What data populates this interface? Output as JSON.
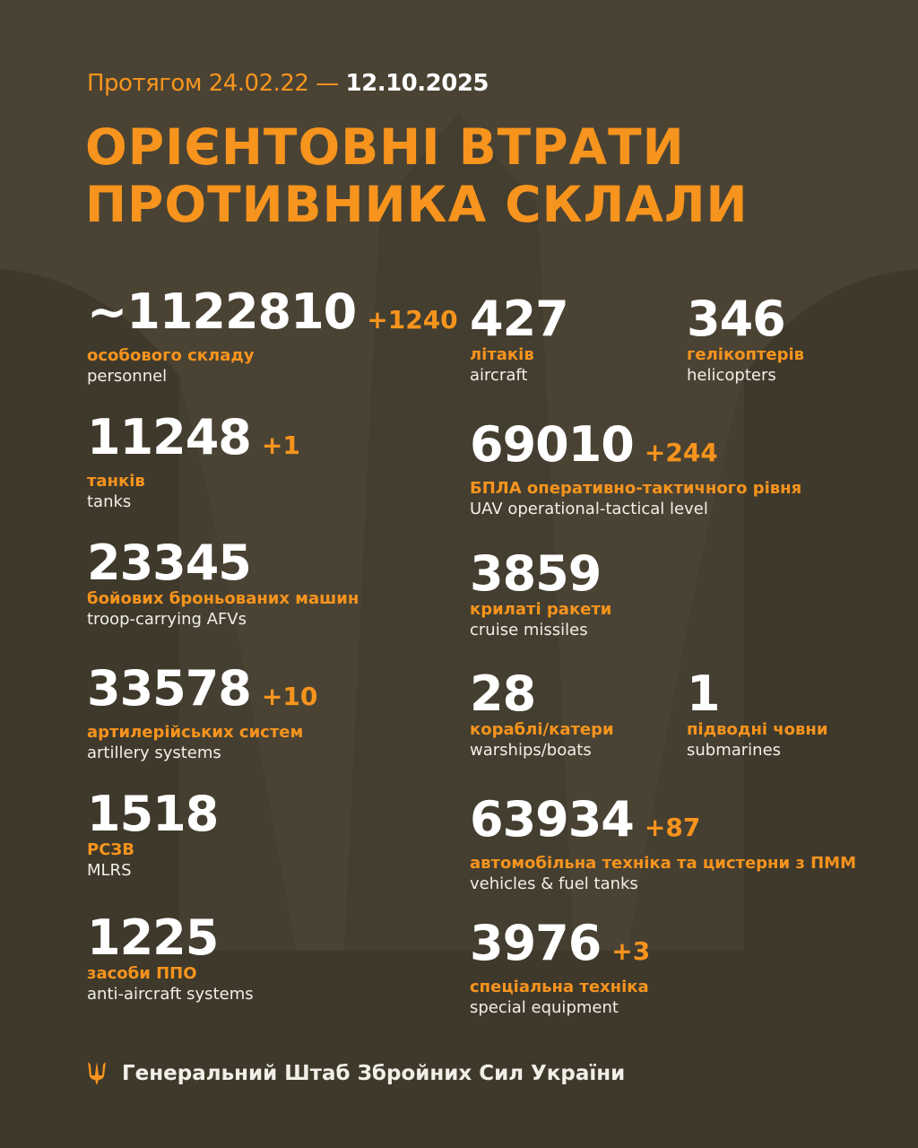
{
  "header": {
    "period_prefix": "Протягом 24.02.22 —",
    "period_end": "12.10.2025",
    "title_line1": "ОРІЄНТОВНІ ВТРАТИ",
    "title_line2": "ПРОТИВНИКА СКЛАЛИ"
  },
  "colors": {
    "accent": "#f7941d",
    "background": "#4a4334",
    "text": "#ffffff"
  },
  "stats": [
    {
      "value": "~1122810",
      "delta": "+1240",
      "label_ua": "особового складу",
      "label_en": "personnel"
    },
    {
      "value": "11248",
      "delta": "+1",
      "label_ua": "танків",
      "label_en": "tanks"
    },
    {
      "value": "23345",
      "delta": "",
      "label_ua": "бойових броньованих машин",
      "label_en": "troop-carrying AFVs"
    },
    {
      "value": "33578",
      "delta": "+10",
      "label_ua": "артилерійських систем",
      "label_en": "artillery systems"
    },
    {
      "value": "1518",
      "delta": "",
      "label_ua": "РСЗВ",
      "label_en": "MLRS"
    },
    {
      "value": "1225",
      "delta": "",
      "label_ua": "засоби ППО",
      "label_en": "anti-aircraft systems"
    },
    {
      "value": "427",
      "delta": "",
      "label_ua": "літаків",
      "label_en": "aircraft"
    },
    {
      "value": "346",
      "delta": "",
      "label_ua": "гелікоптерів",
      "label_en": "helicopters"
    },
    {
      "value": "69010",
      "delta": "+244",
      "label_ua": "БПЛА оперативно-тактичного рівня",
      "label_en": "UAV operational-tactical level"
    },
    {
      "value": "3859",
      "delta": "",
      "label_ua": "крилаті ракети",
      "label_en": "cruise missiles"
    },
    {
      "value": "28",
      "delta": "",
      "label_ua": "кораблі/катери",
      "label_en": "warships/boats"
    },
    {
      "value": "1",
      "delta": "",
      "label_ua": "підводні човни",
      "label_en": "submarines"
    },
    {
      "value": "63934",
      "delta": "+87",
      "label_ua": "автомобільна техніка та цистерни з ПММ",
      "label_en": "vehicles & fuel tanks"
    },
    {
      "value": "3976",
      "delta": "+3",
      "label_ua": "спеціальна техніка",
      "label_en": "special equipment"
    }
  ],
  "footer": {
    "icon": "trident-icon",
    "text": "Генеральний Штаб Збройних Сил України"
  }
}
